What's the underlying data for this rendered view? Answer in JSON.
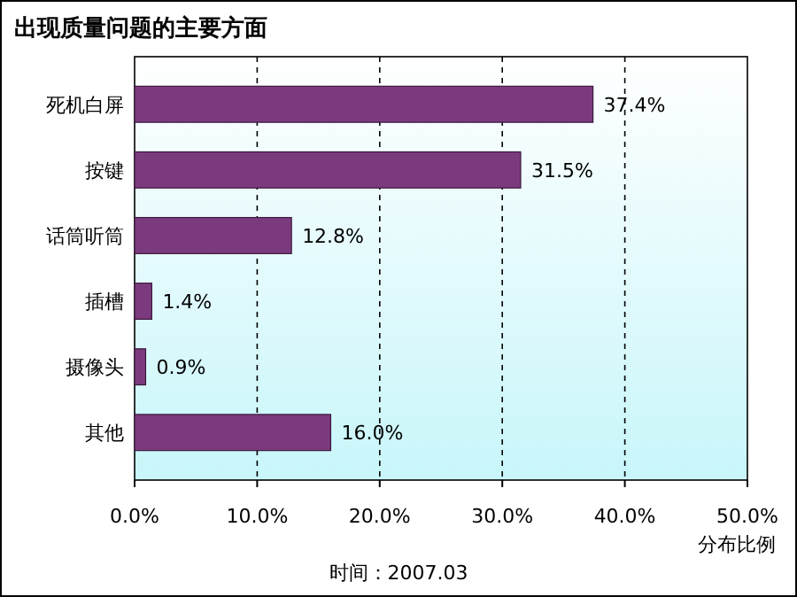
{
  "chart_data": {
    "type": "bar",
    "orientation": "horizontal",
    "title": "出现质量问题的主要方面",
    "xlabel": "分布比例",
    "categories": [
      "死机白屏",
      "按键",
      "话筒听筒",
      "插槽",
      "摄像头",
      "其他"
    ],
    "values": [
      37.4,
      31.5,
      12.8,
      1.4,
      0.9,
      16.0
    ],
    "value_labels": [
      "37.4%",
      "31.5%",
      "12.8%",
      "1.4%",
      "0.9%",
      "16.0%"
    ],
    "color": "#7b3a7e",
    "xlim": [
      0,
      50
    ],
    "xticks": [
      {
        "value": 0,
        "label": "0.0%"
      },
      {
        "value": 10,
        "label": "10.0%"
      },
      {
        "value": 20,
        "label": "20.0%"
      },
      {
        "value": 30,
        "label": "30.0%"
      },
      {
        "value": 40,
        "label": "40.0%"
      },
      {
        "value": 50,
        "label": "50.0%"
      }
    ],
    "grid": "x",
    "annotations": [
      "时间：2007.03"
    ]
  }
}
